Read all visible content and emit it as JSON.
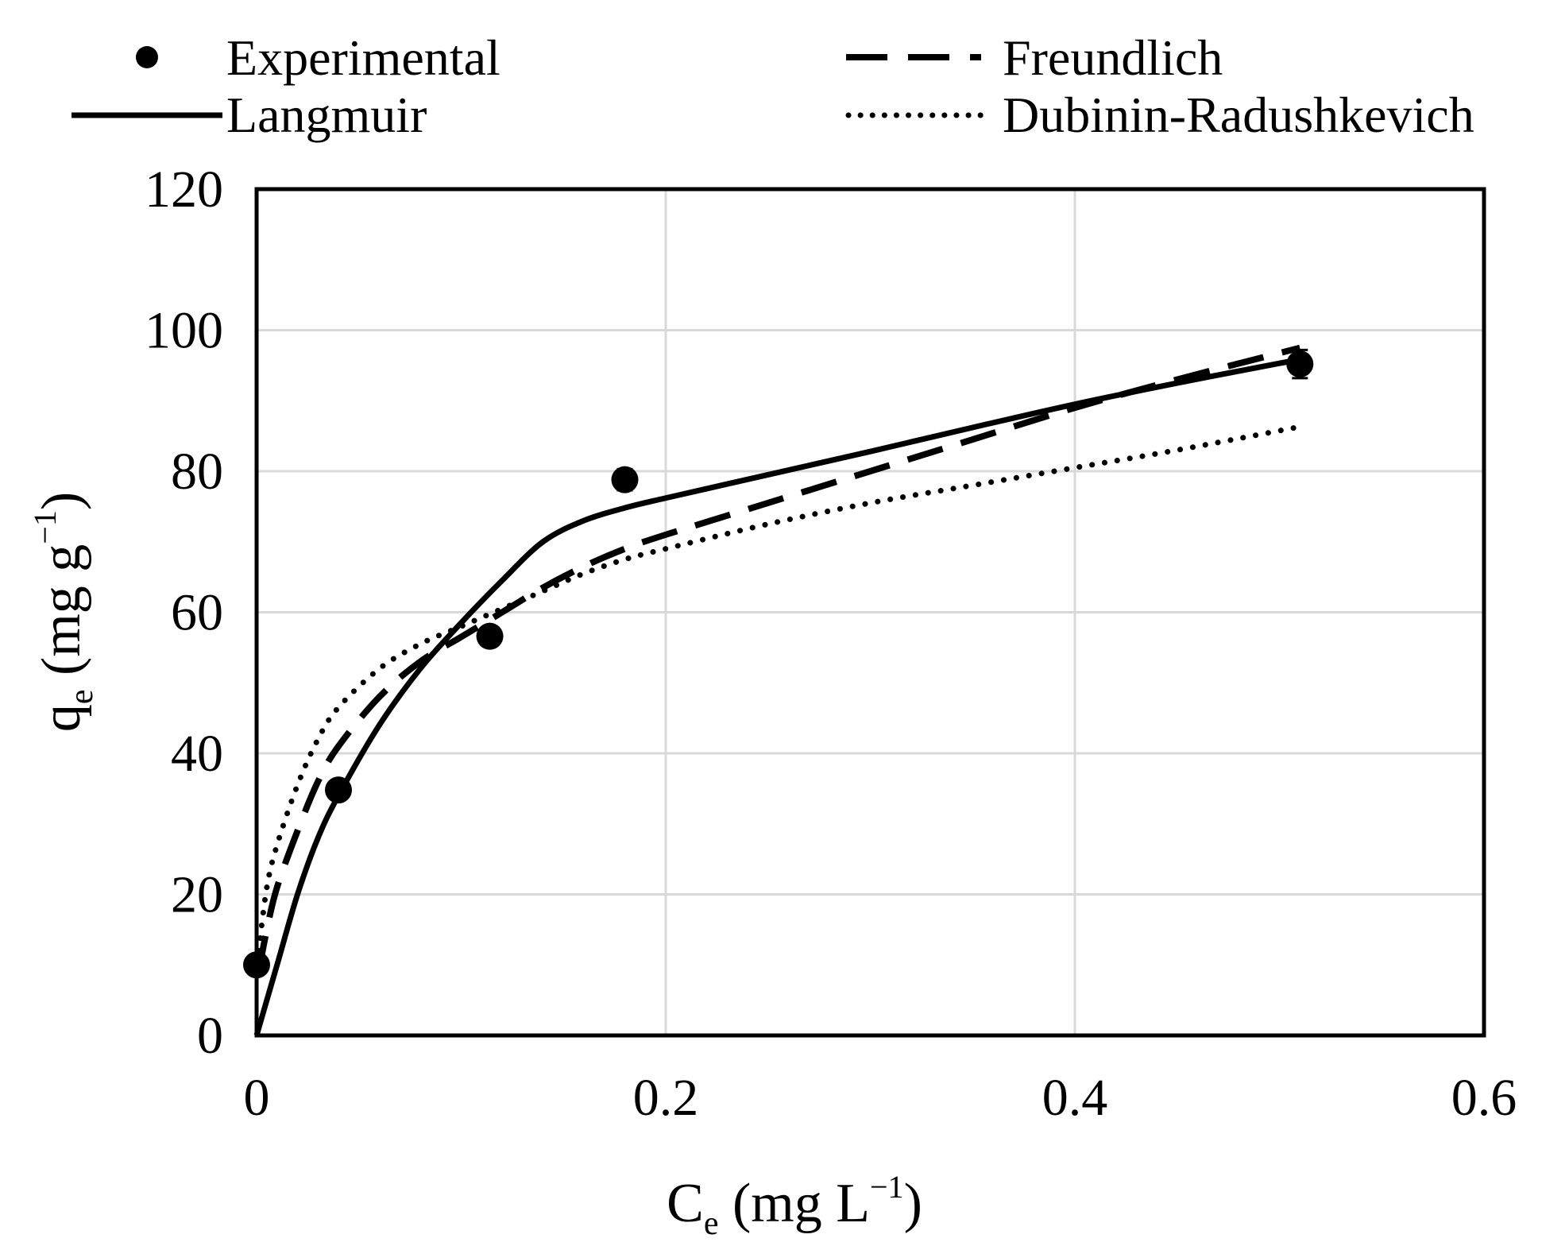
{
  "colors": {
    "ink": "#000000",
    "grid": "#d9d9d9",
    "background": "#ffffff"
  },
  "legend": {
    "experimental": "Experimental",
    "langmuir": "Langmuir",
    "freundlich": "Freundlich",
    "dr": "Dubinin-Radushkevich"
  },
  "chart_data": {
    "type": "scatter",
    "title": "",
    "xlabel": {
      "main": "C",
      "sub": "e",
      "unit_open": " (mg L",
      "sup": "−1",
      "unit_close": ")"
    },
    "ylabel": {
      "main": "q",
      "sub": "e",
      "unit_open": " (mg g",
      "sup": "−1",
      "unit_close": ")"
    },
    "xlim": [
      0,
      0.6
    ],
    "ylim": [
      0,
      120
    ],
    "x_ticks": [
      0,
      0.2,
      0.4,
      0.6
    ],
    "x_tick_labels": [
      "0",
      "0.2",
      "0.4",
      "0.6"
    ],
    "y_ticks": [
      0,
      20,
      40,
      60,
      80,
      100,
      120
    ],
    "y_tick_labels": [
      "0",
      "20",
      "40",
      "60",
      "80",
      "100",
      "120"
    ],
    "grid": true,
    "legend_position": "top",
    "experimental": {
      "name": "Experimental",
      "x": [
        0.0,
        0.04,
        0.114,
        0.18,
        0.51
      ],
      "y": [
        10,
        34.8,
        56.6,
        78.8,
        95.2
      ],
      "error": [
        0,
        0,
        0,
        1.5,
        2.0
      ]
    },
    "series": [
      {
        "name": "Langmuir",
        "style": "solid",
        "x": [
          0,
          0.01,
          0.02,
          0.03,
          0.04,
          0.06,
          0.08,
          0.1,
          0.12,
          0.14,
          0.16,
          0.18,
          0.2,
          0.25,
          0.3,
          0.35,
          0.4,
          0.45,
          0.5,
          0.51
        ],
        "y": [
          0,
          10,
          20,
          28,
          34,
          44,
          52,
          58.5,
          64.5,
          70,
          73,
          74.8,
          76.2,
          79.5,
          82.8,
          86.2,
          89.5,
          92.5,
          95.3,
          95.8
        ]
      },
      {
        "name": "Freundlich",
        "style": "dashed",
        "x": [
          0.001,
          0.005,
          0.01,
          0.02,
          0.03,
          0.04,
          0.06,
          0.08,
          0.1,
          0.12,
          0.14,
          0.16,
          0.18,
          0.2,
          0.25,
          0.3,
          0.35,
          0.4,
          0.45,
          0.51
        ],
        "y": [
          9,
          15,
          21,
          29,
          36,
          41,
          48,
          53,
          56.5,
          60,
          63.5,
          66.5,
          69,
          71,
          75.5,
          80,
          84.5,
          89,
          93,
          97.5
        ]
      },
      {
        "name": "Dubinin-Radushkevich",
        "style": "dotted",
        "x": [
          0.001,
          0.005,
          0.01,
          0.02,
          0.03,
          0.04,
          0.06,
          0.08,
          0.1,
          0.12,
          0.14,
          0.16,
          0.18,
          0.2,
          0.25,
          0.3,
          0.35,
          0.4,
          0.45,
          0.51
        ],
        "y": [
          12,
          21,
          27,
          35.5,
          42,
          46.5,
          52,
          55.5,
          58,
          60.5,
          63,
          65.5,
          67.5,
          69,
          72.5,
          75.5,
          78,
          80.5,
          83,
          86.3
        ]
      }
    ]
  }
}
